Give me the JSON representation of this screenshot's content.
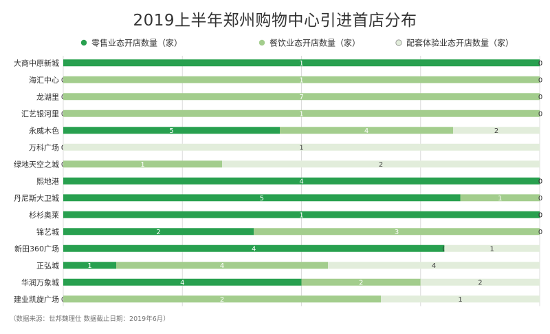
{
  "title": "2019上半年郑州购物中心引进首店分布",
  "source_note": "（数据来源：世邦魏理仕    数据截止日期：2019年6月）",
  "colors": {
    "retail": "#28a04f",
    "food": "#a3cd8d",
    "experience": "#e2eddb"
  },
  "chart_data": {
    "type": "bar",
    "orientation": "horizontal",
    "stacking": "percent",
    "title": "2019上半年郑州购物中心引进首店分布",
    "legend_position": "top",
    "grid": true,
    "categories": [
      "大商中原新城",
      "海汇中心",
      "龙湖里",
      "汇艺银河里",
      "永威木色",
      "万科广场",
      "绿地天空之城",
      "熙地港",
      "丹尼斯大卫城",
      "杉杉奥莱",
      "锦艺城",
      "新田360广场",
      "正弘城",
      "华润万象城",
      "建业凯旋广场"
    ],
    "series": [
      {
        "name": "零售业态开店数量（家）",
        "color": "#28a04f",
        "values": [
          1,
          0,
          0,
          0,
          5,
          0,
          0,
          4,
          5,
          1,
          2,
          4,
          1,
          4,
          0
        ]
      },
      {
        "name": "餐饮业态开店数量（家）",
        "color": "#a3cd8d",
        "values": [
          0,
          1,
          7,
          1,
          4,
          0,
          1,
          0,
          1,
          0,
          3,
          0,
          4,
          2,
          2
        ]
      },
      {
        "name": "配套体验业态开店数量（家）",
        "color": "#e2eddb",
        "values": [
          0,
          0,
          0,
          0,
          2,
          1,
          2,
          0,
          0,
          0,
          0,
          1,
          4,
          2,
          1
        ]
      }
    ]
  }
}
